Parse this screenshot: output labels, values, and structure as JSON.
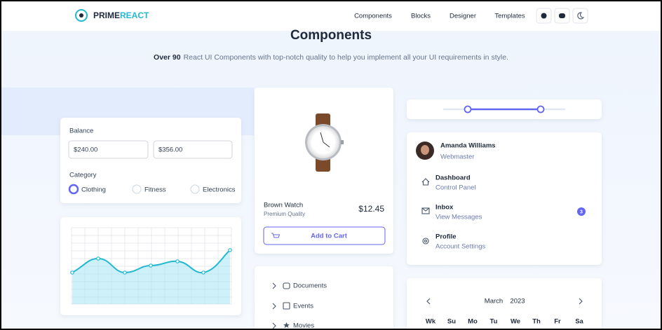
{
  "nav": {
    "logo": {
      "prime": "PRIME",
      "react": "REACT"
    },
    "links": [
      "Components",
      "Blocks",
      "Designer",
      "Templates"
    ]
  },
  "hero": {
    "title": "Components",
    "subtitle_bold": "Over 90",
    "subtitle_rest": "React UI Components with top-notch quality to help you implement all your UI requirements in style."
  },
  "form": {
    "balance_label": "Balance",
    "balance_min": "$240.00",
    "balance_max": "$356.00",
    "category_label": "Category",
    "categories": [
      "Clothing",
      "Fitness",
      "Electronics"
    ]
  },
  "product": {
    "name": "Brown Watch",
    "subtitle": "Premium Quality",
    "price": "$12.45",
    "button": "Add to Cart"
  },
  "tree": {
    "items": [
      "Documents",
      "Events",
      "Movies"
    ]
  },
  "profile": {
    "name": "Amanda Williams",
    "role": "Webmaster",
    "items": [
      {
        "title": "Dashboard",
        "subtitle": "Control Panel"
      },
      {
        "title": "Inbox",
        "subtitle": "View Messages",
        "badge": "3"
      },
      {
        "title": "Profile",
        "subtitle": "Account Settings"
      }
    ]
  },
  "calendar": {
    "month": "March",
    "year": "2023",
    "weekdays": [
      "Wk",
      "Su",
      "Mo",
      "Tu",
      "We",
      "Th",
      "Fr",
      "Sa"
    ]
  }
}
